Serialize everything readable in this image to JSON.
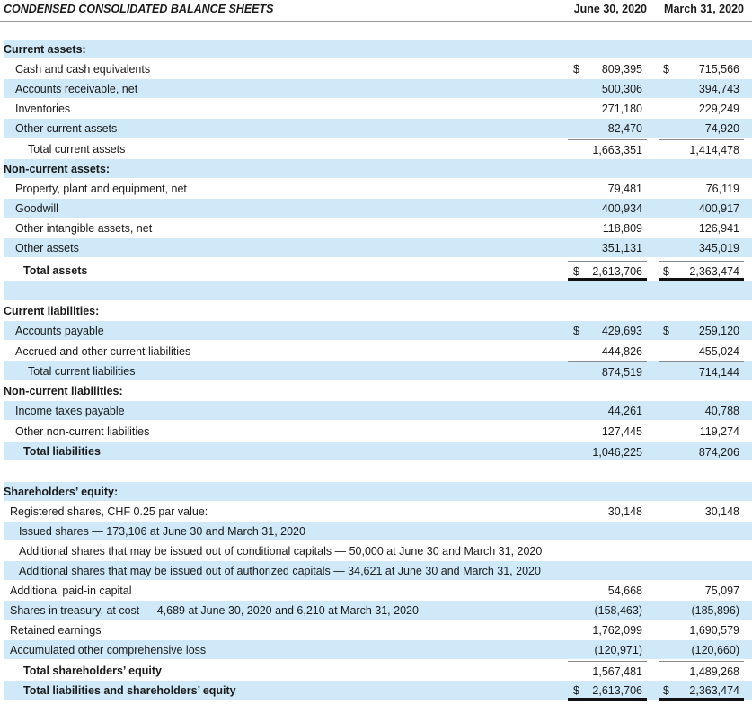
{
  "header": {
    "title": "CONDENSED CONSOLIDATED BALANCE SHEETS",
    "col1": "June 30, 2020",
    "col2": "March 31, 2020"
  },
  "rows": [
    {
      "label": "Current assets:",
      "bold": true,
      "indent": "i0",
      "shade": true
    },
    {
      "label": "Cash and cash equivalents",
      "indent": "i1",
      "a": "809,395",
      "b": "715,566",
      "cur": "$"
    },
    {
      "label": "Accounts receivable, net",
      "indent": "i1",
      "a": "500,306",
      "b": "394,743",
      "shade": true
    },
    {
      "label": "Inventories",
      "indent": "i1",
      "a": "271,180",
      "b": "229,249"
    },
    {
      "label": "Other current assets",
      "indent": "i1",
      "a": "82,470",
      "b": "74,920",
      "shade": true
    },
    {
      "label": "Total current assets",
      "indent": "i2",
      "a": "1,663,351",
      "b": "1,414,478",
      "topline": true
    },
    {
      "label": "Non-current assets:",
      "bold": true,
      "indent": "i0",
      "shade": true
    },
    {
      "label": "Property, plant and equipment, net",
      "indent": "i1",
      "a": "79,481",
      "b": "76,119"
    },
    {
      "label": "Goodwill",
      "indent": "i1",
      "a": "400,934",
      "b": "400,917",
      "shade": true
    },
    {
      "label": "Other intangible assets, net",
      "indent": "i1",
      "a": "118,809",
      "b": "126,941"
    },
    {
      "label": "Other assets",
      "indent": "i1",
      "a": "351,131",
      "b": "345,019",
      "shade": true
    },
    {
      "label": "Total assets",
      "bold": true,
      "indent": "i3",
      "a": "2,613,706",
      "b": "2,363,474",
      "cur": "$",
      "topline": true,
      "double": true
    },
    {
      "label": "",
      "shade": true,
      "blank": true
    },
    {
      "label": "Current liabilities:",
      "bold": true,
      "indent": "i0"
    },
    {
      "label": "Accounts payable",
      "indent": "i1",
      "a": "429,693",
      "b": "259,120",
      "cur": "$",
      "shade": true
    },
    {
      "label": "Accrued and other current liabilities",
      "indent": "i1",
      "a": "444,826",
      "b": "455,024"
    },
    {
      "label": "Total current liabilities",
      "indent": "i2",
      "a": "874,519",
      "b": "714,144",
      "topline": true,
      "shade": true
    },
    {
      "label": "Non-current liabilities:",
      "bold": true,
      "indent": "i0"
    },
    {
      "label": "Income taxes payable",
      "indent": "i1",
      "a": "44,261",
      "b": "40,788",
      "shade": true
    },
    {
      "label": "Other non-current liabilities",
      "indent": "i1",
      "a": "127,445",
      "b": "119,274"
    },
    {
      "label": "Total liabilities",
      "bold": true,
      "indent": "i3",
      "a": "1,046,225",
      "b": "874,206",
      "topline": true,
      "shade": true
    },
    {
      "label": "",
      "blank": true
    },
    {
      "label": "Shareholders’ equity:",
      "bold": true,
      "indent": "i0",
      "shade": true
    },
    {
      "label": "Registered shares, CHF 0.25 par value:",
      "indent": "ia",
      "a": "30,148",
      "b": "30,148"
    },
    {
      "label": "Issued shares — 173,106 at June 30 and March 31, 2020",
      "indent": "ib",
      "shade": true
    },
    {
      "label": "Additional shares that may be issued out of conditional capitals — 50,000 at June 30 and March 31, 2020",
      "indent": "ib"
    },
    {
      "label": "Additional shares that may be issued out of authorized capitals — 34,621 at June 30 and March 31, 2020",
      "indent": "ib",
      "shade": true
    },
    {
      "label": "Additional paid-in capital",
      "indent": "ia",
      "a": "54,668",
      "b": "75,097"
    },
    {
      "label": "Shares in treasury, at cost — 4,689 at June 30, 2020 and 6,210 at March 31, 2020",
      "indent": "ia",
      "a": "(158,463)",
      "b": "(185,896)",
      "shade": true
    },
    {
      "label": "Retained earnings",
      "indent": "ia",
      "a": "1,762,099",
      "b": "1,690,579"
    },
    {
      "label": "Accumulated other comprehensive loss",
      "indent": "ia",
      "a": "(120,971)",
      "b": "(120,660)",
      "shade": true
    },
    {
      "label": "Total shareholders’ equity",
      "bold": true,
      "indent": "i3",
      "a": "1,567,481",
      "b": "1,489,268",
      "topline": true
    },
    {
      "label": "Total liabilities and shareholders’ equity",
      "bold": true,
      "indent": "i3",
      "a": "2,613,706",
      "b": "2,363,474",
      "cur": "$",
      "shade": true,
      "double": true
    }
  ]
}
